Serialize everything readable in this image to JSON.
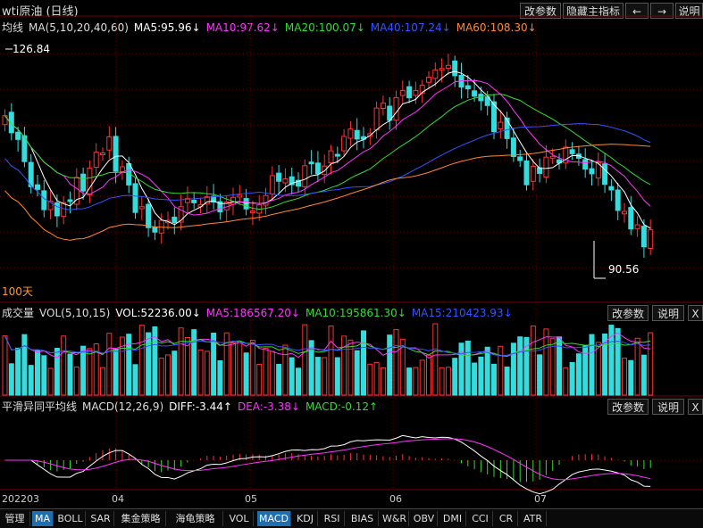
{
  "header": {
    "title": "wti原油 (日线)",
    "buttons": [
      "改参数",
      "隐藏主指标",
      "←",
      "→",
      "说明"
    ]
  },
  "main": {
    "legend": [
      {
        "text": "均线",
        "color": "#dddddd"
      },
      {
        "text": "MA(5,10,20,40,60)",
        "color": "#dddddd"
      },
      {
        "text": "MA5:95.96↓",
        "color": "#ffffff"
      },
      {
        "text": "MA10:97.62↓",
        "color": "#ff33ff"
      },
      {
        "text": "MA20:100.07↓",
        "color": "#33dd33"
      },
      {
        "text": "MA40:107.24↓",
        "color": "#3355ff"
      },
      {
        "text": "MA60:108.30↓",
        "color": "#ff8833"
      }
    ],
    "high_label": "126.84",
    "low_label": "90.56",
    "period_label": "100天"
  },
  "volume": {
    "legend": [
      {
        "text": "成交量",
        "color": "#dddddd"
      },
      {
        "text": "VOL(5,10,15)",
        "color": "#dddddd"
      },
      {
        "text": "VOL:52236.00↓",
        "color": "#ffffff"
      },
      {
        "text": "MA5:186567.20↓",
        "color": "#ff33ff"
      },
      {
        "text": "MA10:195861.30↓",
        "color": "#33dd33"
      },
      {
        "text": "MA15:210423.93↓",
        "color": "#3355ff"
      }
    ],
    "buttons": [
      "改参数",
      "说明",
      "X"
    ]
  },
  "macd": {
    "legend": [
      {
        "text": "平滑异同平均线",
        "color": "#dddddd"
      },
      {
        "text": "MACD(12,26,9)",
        "color": "#dddddd"
      },
      {
        "text": "DIFF:-3.44↑",
        "color": "#ffffff"
      },
      {
        "text": "DEA:-3.38↓",
        "color": "#ff33ff"
      },
      {
        "text": "MACD:-0.12↑",
        "color": "#33dd33"
      }
    ],
    "buttons": [
      "改参数",
      "说明",
      "X"
    ]
  },
  "xaxis": {
    "labels": [
      "202203",
      "04",
      "05",
      "06",
      "07"
    ]
  },
  "toolbar": {
    "items": [
      "管理",
      "MA",
      "BOLL",
      "SAR",
      "集金策略",
      "海龟策略",
      "VOL",
      "MACD",
      "KDJ",
      "RSI",
      "BIAS",
      "W&R",
      "OBV",
      "DMI",
      "CCI",
      "CR",
      "ATR"
    ],
    "active": [
      "MA",
      "MACD"
    ]
  },
  "colors": {
    "up": "#ff3333",
    "down": "#33dddd",
    "grid": "#7a0000"
  }
}
